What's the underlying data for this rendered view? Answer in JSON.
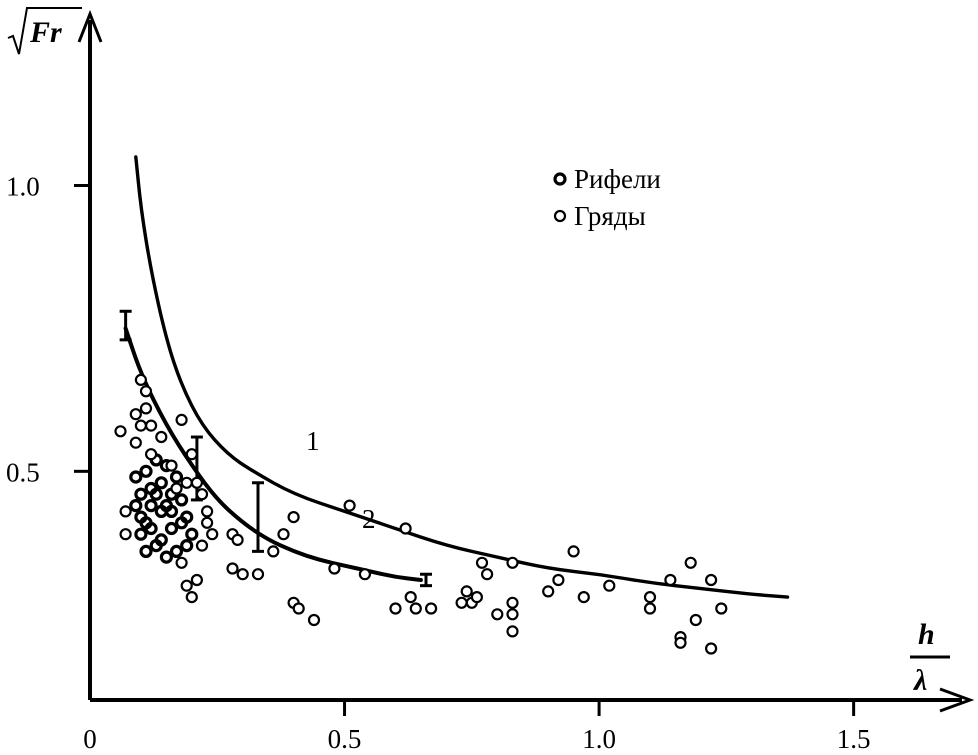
{
  "chart_data": {
    "type": "scatter",
    "title": "",
    "xlabel": {
      "numerator": "h",
      "denominator": "λ"
    },
    "ylabel": "Fr",
    "xlim": [
      0,
      1.65
    ],
    "ylim": [
      0.1,
      1.3
    ],
    "x_ticks": [
      {
        "value": 0,
        "label": "0"
      },
      {
        "value": 0.5,
        "label": "0.5"
      },
      {
        "value": 1.0,
        "label": "1.0"
      },
      {
        "value": 1.5,
        "label": "1.5"
      }
    ],
    "y_ticks": [
      {
        "value": 0.5,
        "label": "0.5"
      },
      {
        "value": 1.0,
        "label": "1.0"
      }
    ],
    "grid": false,
    "legend": {
      "position": "top-right",
      "entries": [
        {
          "label": "Рифели",
          "marker": "filled-ring"
        },
        {
          "label": "Гряды",
          "marker": "ring"
        }
      ]
    },
    "curves": [
      {
        "label": "1",
        "points": [
          [
            0.09,
            1.05
          ],
          [
            0.1,
            0.96
          ],
          [
            0.12,
            0.85
          ],
          [
            0.15,
            0.73
          ],
          [
            0.18,
            0.65
          ],
          [
            0.22,
            0.58
          ],
          [
            0.27,
            0.53
          ],
          [
            0.32,
            0.5
          ],
          [
            0.4,
            0.46
          ],
          [
            0.5,
            0.43
          ],
          [
            0.6,
            0.4
          ],
          [
            0.7,
            0.37
          ],
          [
            0.8,
            0.35
          ],
          [
            0.9,
            0.33
          ],
          [
            1.0,
            0.32
          ],
          [
            1.1,
            0.305
          ],
          [
            1.2,
            0.295
          ],
          [
            1.3,
            0.285
          ],
          [
            1.37,
            0.28
          ]
        ]
      },
      {
        "label": "2",
        "points": [
          [
            0.07,
            0.75
          ],
          [
            0.1,
            0.67
          ],
          [
            0.15,
            0.58
          ],
          [
            0.2,
            0.51
          ],
          [
            0.25,
            0.45
          ],
          [
            0.3,
            0.41
          ],
          [
            0.35,
            0.38
          ],
          [
            0.4,
            0.36
          ],
          [
            0.45,
            0.345
          ],
          [
            0.5,
            0.335
          ],
          [
            0.55,
            0.325
          ],
          [
            0.6,
            0.315
          ],
          [
            0.65,
            0.31
          ]
        ]
      }
    ],
    "error_bars": [
      {
        "x": 0.07,
        "low": 0.73,
        "high": 0.78
      },
      {
        "x": 0.21,
        "low": 0.45,
        "high": 0.56
      },
      {
        "x": 0.33,
        "low": 0.36,
        "high": 0.48
      },
      {
        "x": 0.66,
        "low": 0.3,
        "high": 0.32
      }
    ],
    "series": [
      {
        "name": "Рифели",
        "marker": "filled-ring",
        "points": [
          [
            0.09,
            0.49
          ],
          [
            0.1,
            0.46
          ],
          [
            0.11,
            0.5
          ],
          [
            0.12,
            0.47
          ],
          [
            0.13,
            0.52
          ],
          [
            0.14,
            0.48
          ],
          [
            0.15,
            0.44
          ],
          [
            0.16,
            0.46
          ],
          [
            0.17,
            0.49
          ],
          [
            0.18,
            0.45
          ],
          [
            0.19,
            0.42
          ],
          [
            0.1,
            0.42
          ],
          [
            0.12,
            0.4
          ],
          [
            0.14,
            0.38
          ],
          [
            0.16,
            0.4
          ],
          [
            0.18,
            0.41
          ],
          [
            0.2,
            0.39
          ],
          [
            0.11,
            0.36
          ],
          [
            0.13,
            0.37
          ],
          [
            0.15,
            0.35
          ],
          [
            0.17,
            0.36
          ],
          [
            0.09,
            0.44
          ],
          [
            0.1,
            0.39
          ],
          [
            0.12,
            0.44
          ],
          [
            0.14,
            0.43
          ],
          [
            0.16,
            0.43
          ],
          [
            0.15,
            0.51
          ],
          [
            0.13,
            0.46
          ],
          [
            0.11,
            0.41
          ],
          [
            0.19,
            0.37
          ]
        ]
      },
      {
        "name": "Гряды",
        "marker": "ring",
        "points": [
          [
            0.06,
            0.57
          ],
          [
            0.07,
            0.43
          ],
          [
            0.07,
            0.39
          ],
          [
            0.09,
            0.6
          ],
          [
            0.09,
            0.55
          ],
          [
            0.1,
            0.58
          ],
          [
            0.1,
            0.66
          ],
          [
            0.11,
            0.64
          ],
          [
            0.11,
            0.61
          ],
          [
            0.12,
            0.58
          ],
          [
            0.12,
            0.53
          ],
          [
            0.14,
            0.56
          ],
          [
            0.16,
            0.51
          ],
          [
            0.17,
            0.47
          ],
          [
            0.18,
            0.59
          ],
          [
            0.19,
            0.48
          ],
          [
            0.2,
            0.53
          ],
          [
            0.21,
            0.48
          ],
          [
            0.22,
            0.46
          ],
          [
            0.23,
            0.43
          ],
          [
            0.23,
            0.41
          ],
          [
            0.22,
            0.37
          ],
          [
            0.24,
            0.39
          ],
          [
            0.18,
            0.34
          ],
          [
            0.19,
            0.3
          ],
          [
            0.2,
            0.28
          ],
          [
            0.21,
            0.31
          ],
          [
            0.28,
            0.39
          ],
          [
            0.29,
            0.38
          ],
          [
            0.28,
            0.33
          ],
          [
            0.3,
            0.32
          ],
          [
            0.33,
            0.32
          ],
          [
            0.36,
            0.36
          ],
          [
            0.38,
            0.39
          ],
          [
            0.4,
            0.42
          ],
          [
            0.4,
            0.27
          ],
          [
            0.41,
            0.26
          ],
          [
            0.44,
            0.24
          ],
          [
            0.48,
            0.33
          ],
          [
            0.51,
            0.44
          ],
          [
            0.54,
            0.32
          ],
          [
            0.6,
            0.26
          ],
          [
            0.62,
            0.4
          ],
          [
            0.63,
            0.28
          ],
          [
            0.64,
            0.26
          ],
          [
            0.67,
            0.26
          ],
          [
            0.73,
            0.27
          ],
          [
            0.74,
            0.29
          ],
          [
            0.75,
            0.27
          ],
          [
            0.76,
            0.28
          ],
          [
            0.77,
            0.34
          ],
          [
            0.78,
            0.32
          ],
          [
            0.8,
            0.25
          ],
          [
            0.83,
            0.34
          ],
          [
            0.83,
            0.27
          ],
          [
            0.83,
            0.25
          ],
          [
            0.83,
            0.22
          ],
          [
            0.9,
            0.29
          ],
          [
            0.92,
            0.31
          ],
          [
            0.95,
            0.36
          ],
          [
            0.97,
            0.28
          ],
          [
            1.02,
            0.3
          ],
          [
            1.1,
            0.28
          ],
          [
            1.1,
            0.26
          ],
          [
            1.14,
            0.31
          ],
          [
            1.16,
            0.21
          ],
          [
            1.16,
            0.2
          ],
          [
            1.18,
            0.34
          ],
          [
            1.19,
            0.24
          ],
          [
            1.22,
            0.31
          ],
          [
            1.22,
            0.19
          ],
          [
            1.24,
            0.26
          ]
        ]
      }
    ]
  }
}
